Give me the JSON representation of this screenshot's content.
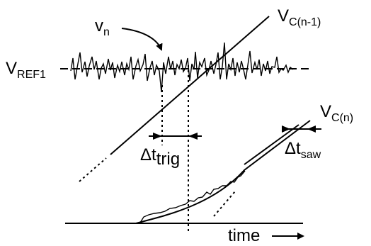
{
  "labels": {
    "vref_main": "V",
    "vref_sub": "REF1",
    "vn_main": "v",
    "vn_sub": "n",
    "vcn1_main": "V",
    "vcn1_sub": "C(n-1)",
    "vcn_main": "V",
    "vcn_sub": "C(n)",
    "dt_trig_main": "Δt",
    "dt_trig_sub": "trig",
    "dt_saw_main": "Δt",
    "dt_saw_sub": "saw",
    "time": "time"
  }
}
